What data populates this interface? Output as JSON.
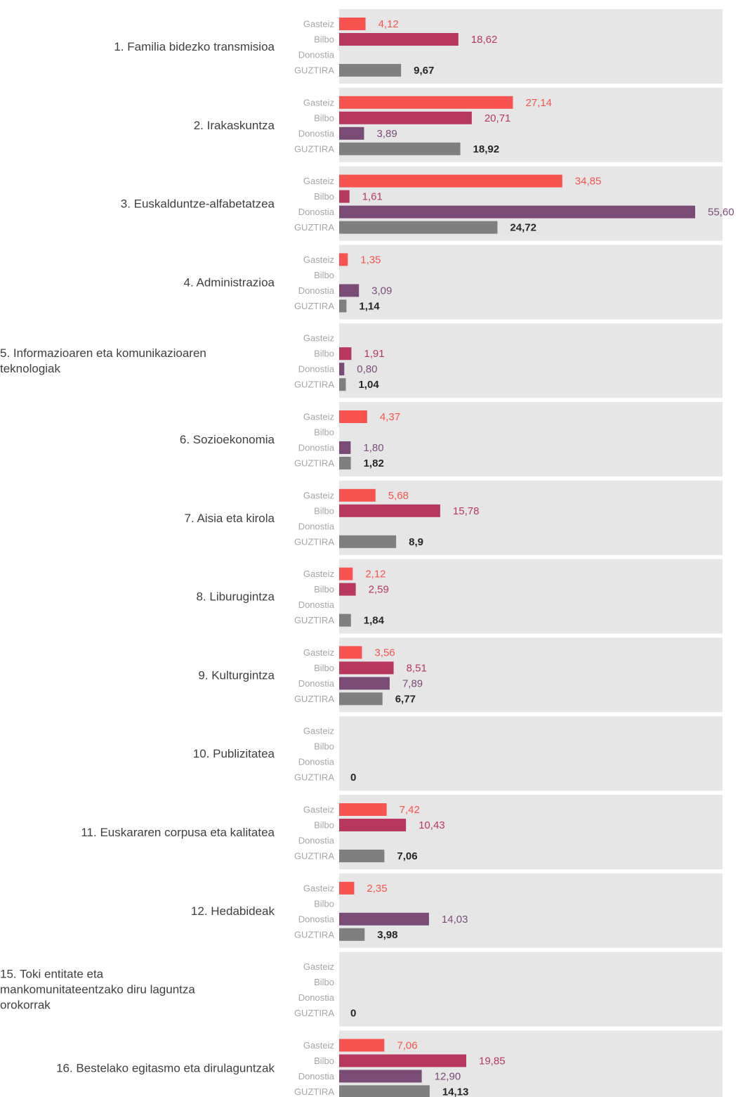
{
  "chart_data": {
    "type": "bar",
    "orientation": "horizontal",
    "row_labels": [
      "Gasteiz",
      "Bilbo",
      "Donostia",
      "GUZTIRA"
    ],
    "colors": [
      "#f9534f",
      "#b8375f",
      "#7b4b78",
      "#7f7f7f"
    ],
    "label_colors": [
      "#f9534f",
      "#b8375f",
      "#7b4b78",
      "#262626"
    ],
    "panel_color": "#e6e6e6",
    "grid": false,
    "legend": "none",
    "xlim": [
      0,
      55.6
    ],
    "categories": [
      {
        "label": [
          "1.  Familia bidezko transmisioa"
        ],
        "values": [
          4.12,
          18.62,
          null,
          9.67
        ],
        "labels": [
          "4,12",
          "18,62",
          "",
          "9,67"
        ]
      },
      {
        "label": [
          "2.  Irakaskuntza"
        ],
        "values": [
          27.14,
          20.71,
          3.89,
          18.92
        ],
        "labels": [
          "27,14",
          "20,71",
          "3,89",
          "18,92"
        ]
      },
      {
        "label": [
          "3.  Euskalduntze-alfabetatzea"
        ],
        "values": [
          34.85,
          1.61,
          55.6,
          24.72
        ],
        "labels": [
          "34,85",
          "1,61",
          "55,60",
          "24,72"
        ]
      },
      {
        "label": [
          "4.  Administrazioa"
        ],
        "values": [
          1.35,
          null,
          3.09,
          1.14
        ],
        "labels": [
          "1,35",
          "",
          "3,09",
          "1,14"
        ]
      },
      {
        "label": [
          "5. Informazioaren eta komunikazioaren",
          "teknologiak"
        ],
        "values": [
          null,
          1.91,
          0.8,
          1.04
        ],
        "labels": [
          "",
          "1,91",
          "0,80",
          "1,04"
        ]
      },
      {
        "label": [
          "6.  Sozioekonomia"
        ],
        "values": [
          4.37,
          null,
          1.8,
          1.82
        ],
        "labels": [
          "4,37",
          "",
          "1,80",
          "1,82"
        ]
      },
      {
        "label": [
          "7.  Aisia eta kirola"
        ],
        "values": [
          5.68,
          15.78,
          null,
          8.9
        ],
        "labels": [
          "5,68",
          "15,78",
          "",
          "8,9"
        ]
      },
      {
        "label": [
          "8.  Liburugintza"
        ],
        "values": [
          2.12,
          2.59,
          null,
          1.84
        ],
        "labels": [
          "2,12",
          "2,59",
          "",
          "1,84"
        ]
      },
      {
        "label": [
          "9.  Kulturgintza"
        ],
        "values": [
          3.56,
          8.51,
          7.89,
          6.77
        ],
        "labels": [
          "3,56",
          "8,51",
          "7,89",
          "6,77"
        ]
      },
      {
        "label": [
          "10.  Publizitatea"
        ],
        "values": [
          null,
          null,
          null,
          0
        ],
        "labels": [
          "",
          "",
          "",
          "0"
        ]
      },
      {
        "label": [
          "11.  Euskararen corpusa eta kalitatea"
        ],
        "values": [
          7.42,
          10.43,
          null,
          7.06
        ],
        "labels": [
          "7,42",
          "10,43",
          "",
          "7,06"
        ]
      },
      {
        "label": [
          "12.  Hedabideak"
        ],
        "values": [
          2.35,
          null,
          14.03,
          3.98
        ],
        "labels": [
          "2,35",
          "",
          "14,03",
          "3,98"
        ]
      },
      {
        "label": [
          "15.  Toki entitate eta",
          "mankomunitateentzako diru laguntza",
          "orokorrak"
        ],
        "values": [
          null,
          null,
          null,
          0
        ],
        "labels": [
          "",
          "",
          "",
          "0"
        ]
      },
      {
        "label": [
          "16.  Bestelako egitasmo eta dirulaguntzak"
        ],
        "values": [
          7.06,
          19.85,
          12.9,
          14.13
        ],
        "labels": [
          "7,06",
          "19,85",
          "12,90",
          "14,13"
        ]
      }
    ]
  }
}
